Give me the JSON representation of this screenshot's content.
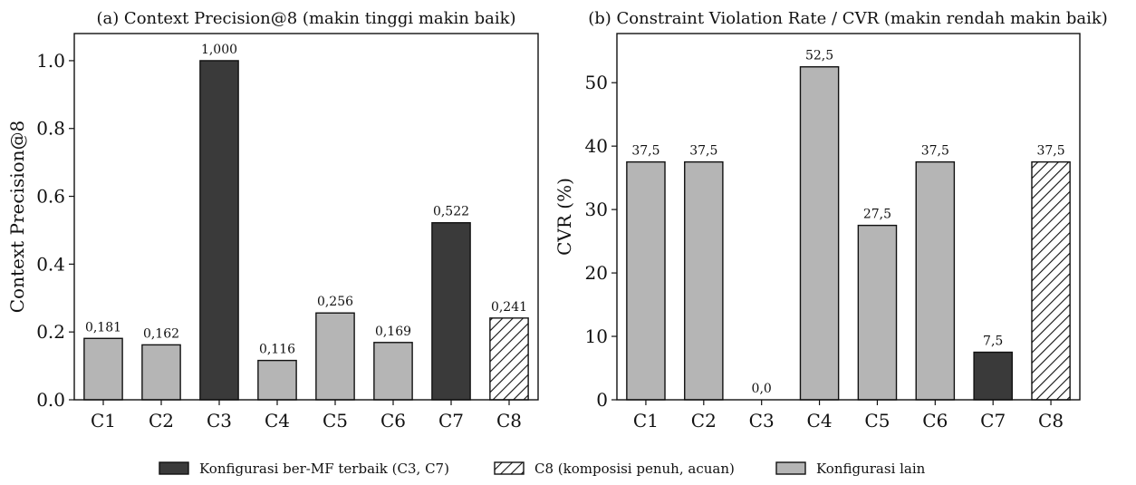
{
  "colors": {
    "best": "#3a3a3a",
    "other": "#b5b5b5",
    "edge": "#111111",
    "hatch": "#111111"
  },
  "legend": {
    "items": [
      {
        "label": "Konfigurasi ber-MF terbaik (C3, C7)",
        "style": "best"
      },
      {
        "label": "C8 (komposisi penuh, acuan)",
        "style": "hatch"
      },
      {
        "label": "Konfigurasi lain",
        "style": "other"
      }
    ],
    "placement": "bottom-center"
  },
  "chart_data": [
    {
      "type": "bar",
      "title": "(a) Context Precision@8 (makin tinggi makin baik)",
      "xlabel": "",
      "ylabel": "Context Precision@8",
      "categories": [
        "C1",
        "C2",
        "C3",
        "C4",
        "C5",
        "C6",
        "C7",
        "C8"
      ],
      "values": [
        0.181,
        0.162,
        1.0,
        0.116,
        0.256,
        0.169,
        0.522,
        0.241
      ],
      "data_labels": [
        "0,181",
        "0,162",
        "1,000",
        "0,116",
        "0,256",
        "0,169",
        "0,522",
        "0,241"
      ],
      "styles": [
        "other",
        "other",
        "best",
        "other",
        "other",
        "other",
        "best",
        "hatch"
      ],
      "ylim": [
        0,
        1.08
      ],
      "yticks": [
        0.0,
        0.2,
        0.4,
        0.6,
        0.8,
        1.0
      ],
      "ytick_labels": [
        "0.0",
        "0.2",
        "0.4",
        "0.6",
        "0.8",
        "1.0"
      ],
      "grid": false
    },
    {
      "type": "bar",
      "title": "(b) Constraint Violation Rate / CVR (makin rendah makin baik)",
      "xlabel": "",
      "ylabel": "CVR (%)",
      "categories": [
        "C1",
        "C2",
        "C3",
        "C4",
        "C5",
        "C6",
        "C7",
        "C8"
      ],
      "values": [
        37.5,
        37.5,
        0.0,
        52.5,
        27.5,
        37.5,
        7.5,
        37.5
      ],
      "data_labels": [
        "37,5",
        "37,5",
        "0,0",
        "52,5",
        "27,5",
        "37,5",
        "7,5",
        "37,5"
      ],
      "styles": [
        "other",
        "other",
        "best",
        "other",
        "other",
        "other",
        "best",
        "hatch"
      ],
      "ylim": [
        0,
        57.75
      ],
      "yticks": [
        0,
        10,
        20,
        30,
        40,
        50
      ],
      "ytick_labels": [
        "0",
        "10",
        "20",
        "30",
        "40",
        "50"
      ],
      "grid": false
    }
  ]
}
